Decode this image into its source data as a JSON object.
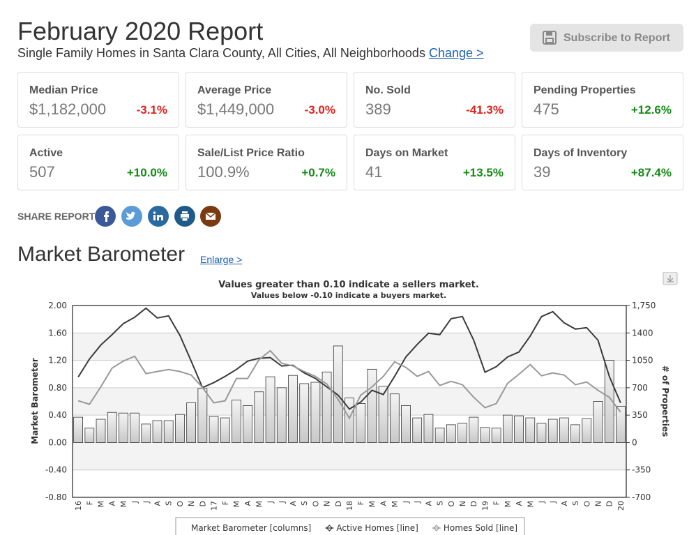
{
  "header": {
    "title": "February 2020 Report",
    "subtitle": "Single Family Homes in Santa Clara County, All Cities, All Neighborhoods",
    "link": "Change >",
    "button": "Subscribe to Report"
  },
  "cards": [
    {
      "label": "Median Price",
      "value": "$1,182,000",
      "change": "-3.1%"
    },
    {
      "label": "Average Price",
      "value": "$1,449,000",
      "change": "-3.0%"
    },
    {
      "label": "No. Sold",
      "value": "389",
      "change": "-41.3%"
    },
    {
      "label": "Pending Properties",
      "value": "475",
      "change": "+12.6%"
    },
    {
      "label": "Active",
      "value": "507",
      "change": "+10.0%"
    },
    {
      "label": "Sale/List Price Ratio",
      "value": "100.9%",
      "change": "+0.7%"
    },
    {
      "label": "Days on Market",
      "value": "41",
      "change": "+13.5%"
    },
    {
      "label": "Days of Inventory",
      "value": "39",
      "change": "+87.4%"
    }
  ],
  "share": {
    "label": "SHARE REPORT"
  },
  "section": {
    "title": "Market Barometer",
    "link": "Enlarge >"
  },
  "chart_data": {
    "type": "combo",
    "title": "Values greater than 0.10 indicate a sellers market.",
    "subtitle": "Values below -0.10 indicate a buyers market.",
    "ylabel": "Market Barometer",
    "y2label": "# of Properties",
    "categories": [
      "16",
      "F",
      "M",
      "A",
      "M",
      "J",
      "J",
      "A",
      "S",
      "O",
      "N",
      "D",
      "17",
      "F",
      "M",
      "A",
      "M",
      "J",
      "J",
      "A",
      "S",
      "O",
      "N",
      "D",
      "18",
      "F",
      "M",
      "A",
      "M",
      "J",
      "J",
      "A",
      "S",
      "O",
      "N",
      "D",
      "19",
      "F",
      "M",
      "A",
      "M",
      "J",
      "J",
      "A",
      "S",
      "O",
      "N",
      "D",
      "20"
    ],
    "series": [
      {
        "name": "Market Barometer [columns]",
        "type": "bar",
        "axis": "y",
        "color": "#c8c8c8",
        "values": [
          0.37,
          0.21,
          0.34,
          0.44,
          0.43,
          0.43,
          0.27,
          0.32,
          0.32,
          0.41,
          0.58,
          0.79,
          0.38,
          0.36,
          0.62,
          0.54,
          0.74,
          0.96,
          0.8,
          0.98,
          0.86,
          0.88,
          1.03,
          1.41,
          0.65,
          0.57,
          1.07,
          0.82,
          0.71,
          0.54,
          0.36,
          0.41,
          0.21,
          0.26,
          0.28,
          0.37,
          0.22,
          0.21,
          0.4,
          0.39,
          0.36,
          0.28,
          0.34,
          0.36,
          0.26,
          0.35,
          0.6,
          1.2,
          0.53
        ]
      },
      {
        "name": "Active Homes [line]",
        "type": "line",
        "axis": "y2",
        "color": "#3a3a3a",
        "values": [
          836,
          1067,
          1245,
          1378,
          1520,
          1600,
          1716,
          1591,
          1618,
          1369,
          1040,
          702,
          765,
          845,
          933,
          1040,
          1076,
          1085,
          978,
          987,
          889,
          818,
          711,
          605,
          427,
          516,
          667,
          613,
          845,
          1093,
          1253,
          1396,
          1378,
          1582,
          1609,
          1307,
          898,
          969,
          1093,
          1156,
          1360,
          1609,
          1671,
          1529,
          1449,
          1467,
          1307,
          845,
          507
        ]
      },
      {
        "name": "Homes Sold [line]",
        "type": "line",
        "axis": "y2",
        "color": "#999999",
        "values": [
          533,
          489,
          711,
          951,
          1040,
          1102,
          880,
          907,
          933,
          907,
          862,
          702,
          507,
          533,
          818,
          818,
          1058,
          1173,
          1013,
          978,
          907,
          845,
          747,
          551,
          311,
          605,
          711,
          845,
          1031,
          960,
          845,
          907,
          729,
          782,
          738,
          578,
          445,
          498,
          756,
          871,
          996,
          853,
          889,
          862,
          738,
          773,
          667,
          578,
          389
        ]
      }
    ],
    "ylim": [
      -0.8,
      2
    ],
    "yticks": [
      {
        "value": -0.8,
        "label": "-0.80"
      },
      {
        "value": -0.4,
        "label": "-0.40"
      },
      {
        "value": 0,
        "label": "0.00"
      },
      {
        "value": 0.4,
        "label": "0.40"
      },
      {
        "value": 0.8,
        "label": "0.80"
      },
      {
        "value": 1.2,
        "label": "1.20"
      },
      {
        "value": 1.6,
        "label": "1.60"
      },
      {
        "value": 2,
        "label": "2.00"
      }
    ],
    "y2lim": [
      -700,
      1750
    ],
    "y2ticks": [
      -700,
      -350,
      0,
      350,
      700,
      1050,
      1400,
      {
        "value": 1750,
        "label": "1,750"
      }
    ],
    "grid": true
  }
}
